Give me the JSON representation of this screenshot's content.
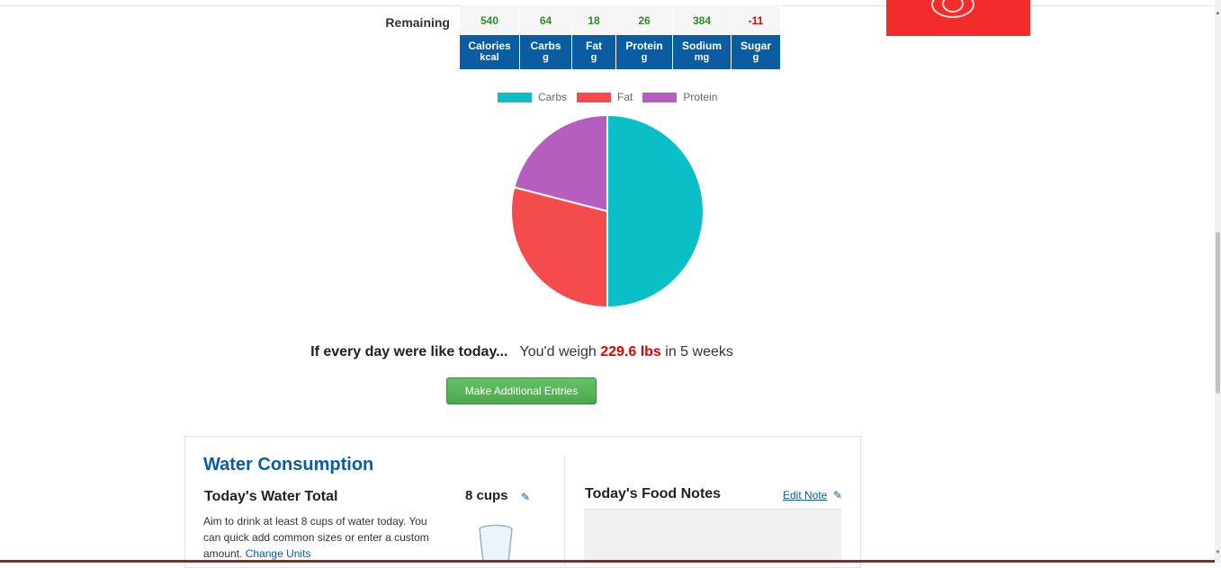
{
  "totals": {
    "remaining_label": "Remaining",
    "remaining": [
      {
        "value": "540",
        "negative": false
      },
      {
        "value": "64",
        "negative": false
      },
      {
        "value": "18",
        "negative": false
      },
      {
        "value": "26",
        "negative": false
      },
      {
        "value": "384",
        "negative": false
      },
      {
        "value": "-11",
        "negative": true
      }
    ],
    "columns": [
      {
        "name": "Calories",
        "unit": "kcal"
      },
      {
        "name": "Carbs",
        "unit": "g"
      },
      {
        "name": "Fat",
        "unit": "g"
      },
      {
        "name": "Protein",
        "unit": "g"
      },
      {
        "name": "Sodium",
        "unit": "mg"
      },
      {
        "name": "Sugar",
        "unit": "g"
      }
    ]
  },
  "chart_data": {
    "type": "pie",
    "labels": [
      "Carbs",
      "Fat",
      "Protein"
    ],
    "values": [
      50,
      29,
      21
    ],
    "colors": [
      "#0bbfc7",
      "#f44c4c",
      "#b65dc0"
    ],
    "legend": "top"
  },
  "weight": {
    "lead": "If every day were like today...",
    "pre": "You'd weigh",
    "value": "229.6 lbs",
    "post": "in 5 weeks"
  },
  "make_button_label": "Make Additional Entries",
  "water": {
    "title": "Water Consumption",
    "total_label": "Today's Water Total",
    "cups": "8 cups",
    "desc": "Aim to drink at least 8 cups of water today. You can quick add common sizes or enter a custom amount.",
    "change_units": "Change Units"
  },
  "notes": {
    "title": "Today's Food Notes",
    "edit_label": "Edit Note"
  },
  "colors": {
    "accent_blue": "#0a5da1",
    "positive_green": "#2e8b2e",
    "negative_red": "#e60000",
    "button_green": "#5cb85c",
    "ad_red": "#f22b2b"
  }
}
